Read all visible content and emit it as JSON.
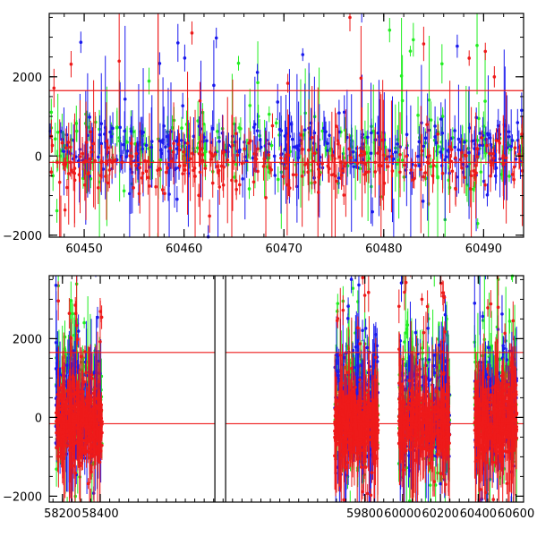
{
  "colors": {
    "green": "#22ee22",
    "blue": "#1a1aee",
    "red": "#ee1a1a",
    "axis": "#000000"
  },
  "chart_data": [
    {
      "type": "scatter",
      "title": "",
      "xlabel": "",
      "ylabel": "",
      "xlim": [
        60446.5,
        60494
      ],
      "ylim": [
        -2050,
        3600
      ],
      "x_ticks": [
        60450,
        60460,
        60470,
        60480,
        60490
      ],
      "x_tick_labels": [
        "60450",
        "60460",
        "60470",
        "60480",
        "60490"
      ],
      "y_ticks": [
        -2000,
        0,
        2000
      ],
      "y_tick_labels": [
        "−2000",
        "0",
        "2000"
      ],
      "hlines": [
        1650,
        -160
      ],
      "vlines": [
        60457.4
      ],
      "gaps": [],
      "series": [
        {
          "color": "green",
          "x_range": [
            60446.5,
            60494
          ],
          "baseline": 150,
          "scatter": 450,
          "n": 260
        },
        {
          "color": "blue",
          "x_range": [
            60446.5,
            60494
          ],
          "baseline": 200,
          "scatter": 400,
          "n": 320
        },
        {
          "color": "red",
          "x_range": [
            60446.5,
            60494
          ],
          "baseline": -200,
          "scatter": 350,
          "n": 300
        }
      ]
    },
    {
      "type": "scatter",
      "title": "",
      "xlabel": "",
      "ylabel": "",
      "xlim": [
        58130,
        60640
      ],
      "ylim": [
        -2150,
        3600
      ],
      "x_ticks": [
        58200,
        58400,
        59800,
        60000,
        60200,
        60400,
        60600
      ],
      "x_tick_labels": [
        "58200",
        "58400",
        "59800",
        "60000",
        "60200",
        "60400",
        "60600"
      ],
      "y_ticks": [
        -2000,
        0,
        2000
      ],
      "y_tick_labels": [
        "−2000",
        "0",
        "2000"
      ],
      "hlines": [
        1650,
        -160
      ],
      "vlines": [],
      "gaps": [
        {
          "after": 58440,
          "before": 59630
        }
      ],
      "clusters": [
        [
          58165,
          58410
        ],
        [
          59640,
          59870
        ],
        [
          59980,
          60250
        ],
        [
          60380,
          60605
        ]
      ],
      "series": [
        {
          "color": "green",
          "baseline": 400,
          "scatter": 800,
          "n": 700
        },
        {
          "color": "blue",
          "baseline": 200,
          "scatter": 700,
          "n": 800
        },
        {
          "color": "red",
          "baseline": -150,
          "scatter": 420,
          "n": 1400
        }
      ]
    }
  ]
}
